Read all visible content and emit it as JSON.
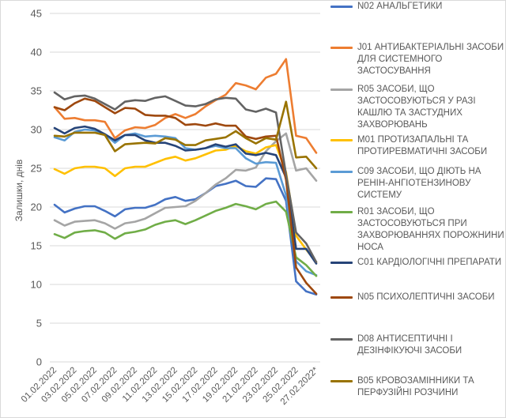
{
  "chart_data": {
    "type": "line",
    "title": "",
    "xlabel": "",
    "ylabel": "Залишки, днів",
    "ylim": [
      0,
      45
    ],
    "yticks": [
      0,
      5,
      10,
      15,
      20,
      25,
      30,
      35,
      40,
      45
    ],
    "grid": "horizontal",
    "legend_position": "right",
    "categories": [
      "01.02.2022",
      "02.02.2022",
      "03.02.2022",
      "04.02.2022",
      "05.02.2022",
      "06.02.2022",
      "07.02.2022",
      "08.02.2022",
      "09.02.2022",
      "10.02.2022",
      "11.02.2022",
      "12.02.2022",
      "13.02.2022",
      "14.02.2022",
      "15.02.2022",
      "16.02.2022",
      "17.02.2022",
      "18.02.2022",
      "19.02.2022",
      "20.02.2022",
      "21.02.2022",
      "22.02.2022",
      "23.02.2022",
      "24.02.2022",
      "25.02.2022",
      "26.02.2022",
      "27.02.2022*"
    ],
    "x_tick_labels": [
      "01.02.2022",
      "03.02.2022",
      "05.02.2022",
      "07.02.2022",
      "09.02.2022",
      "11.02.2022",
      "13.02.2022",
      "15.02.2022",
      "17.02.2022",
      "19.02.2022",
      "21.02.2022",
      "23.02.2022",
      "25.02.2022",
      "27.02.2022*"
    ],
    "series": [
      {
        "name": "N02 АНАЛЬГЕТИКИ",
        "color": "#4472C4",
        "values": [
          20.3,
          19.3,
          19.8,
          20.1,
          20.1,
          19.5,
          18.8,
          19.7,
          19.9,
          19.9,
          20.3,
          21.0,
          21.3,
          20.8,
          21.0,
          21.8,
          22.7,
          23.0,
          23.4,
          22.7,
          22.6,
          23.7,
          23.6,
          20.8,
          10.4,
          9.1,
          8.7
        ]
      },
      {
        "name": "J01 АНТИБАКТЕРІАЛЬНІ ЗАСОБИ ДЛЯ СИСТЕМНОГО ЗАСТОСУВАННЯ",
        "color": "#ED7D31",
        "values": [
          32.9,
          31.4,
          31.5,
          31.2,
          31.2,
          31.0,
          28.9,
          29.9,
          30.3,
          30.2,
          30.6,
          31.5,
          32.0,
          31.5,
          32.0,
          33.0,
          33.8,
          34.5,
          36.0,
          35.7,
          35.2,
          36.7,
          37.2,
          39.1,
          29.2,
          28.9,
          27.0
        ]
      },
      {
        "name": "R05 ЗАСОБИ, ЩО ЗАСТОСОВУЮТЬСЯ У РАЗІ КАШЛЮ ТА ЗАСТУДНИХ ЗАХВОРЮВАНЬ",
        "color": "#A5A5A5",
        "values": [
          18.3,
          17.6,
          18.1,
          18.2,
          18.3,
          17.9,
          17.2,
          17.9,
          18.1,
          18.5,
          19.2,
          19.9,
          20.0,
          20.1,
          20.8,
          21.8,
          22.9,
          23.7,
          24.8,
          24.7,
          25.1,
          27.2,
          28.5,
          29.5,
          24.7,
          25.0,
          23.4
        ]
      },
      {
        "name": "M01 ПРОТИЗАПАЛЬНІ ТА ПРОТИРЕВМАТИЧНІ ЗАСОБИ",
        "color": "#FFC000",
        "values": [
          24.9,
          24.3,
          25.0,
          25.2,
          25.2,
          25.0,
          24.0,
          25.0,
          25.2,
          25.2,
          25.7,
          26.2,
          26.5,
          26.0,
          26.3,
          26.8,
          27.3,
          27.4,
          27.9,
          27.2,
          26.9,
          27.7,
          28.0,
          24.5,
          16.3,
          14.5,
          12.9
        ]
      },
      {
        "name": "C09 ЗАСОБИ, ЩО ДІЮТЬ НА РЕНІН-АНГІОТЕНЗИНОВУ СИСТЕМУ",
        "color": "#5B9BD5",
        "values": [
          29.0,
          28.6,
          29.7,
          30.0,
          29.9,
          29.4,
          28.3,
          29.3,
          29.5,
          29.1,
          29.2,
          29.1,
          28.9,
          27.6,
          27.4,
          27.6,
          27.9,
          27.6,
          27.6,
          26.3,
          25.6,
          25.8,
          25.7,
          21.5,
          13.0,
          11.7,
          11.2
        ]
      },
      {
        "name": "R01 ЗАСОБИ, ЩО ЗАСТОСОВУЮТЬСЯ ПРИ ЗАХВОРЮВАННЯХ ПОРОЖНИНИ НОСА",
        "color": "#70AD47",
        "values": [
          16.5,
          16.0,
          16.7,
          16.9,
          17.0,
          16.7,
          15.9,
          16.6,
          16.8,
          17.1,
          17.7,
          18.1,
          18.3,
          17.8,
          18.3,
          18.9,
          19.5,
          19.9,
          20.4,
          20.1,
          19.7,
          20.4,
          20.7,
          19.4,
          13.5,
          12.5,
          11.1
        ]
      },
      {
        "name": "C01 КАРДІОЛОГІЧНІ ПРЕПАРАТИ",
        "color": "#264478",
        "values": [
          30.2,
          29.5,
          30.2,
          30.4,
          30.1,
          29.4,
          28.6,
          29.3,
          29.3,
          28.6,
          28.3,
          28.3,
          27.9,
          27.3,
          27.4,
          27.6,
          28.1,
          27.8,
          28.1,
          26.9,
          26.7,
          27.0,
          26.7,
          23.8,
          14.6,
          14.6,
          12.7
        ]
      },
      {
        "name": "N05 ПСИХОЛЕПТИЧНІ ЗАСОБИ",
        "color": "#9E480E",
        "values": [
          32.9,
          32.5,
          33.4,
          34.0,
          33.7,
          32.9,
          32.1,
          32.8,
          32.7,
          31.9,
          31.8,
          31.8,
          31.5,
          30.6,
          30.7,
          30.5,
          30.8,
          30.5,
          30.5,
          29.1,
          28.8,
          29.1,
          29.2,
          23.5,
          12.2,
          10.2,
          8.8
        ]
      },
      {
        "name": "D08 АНТИСЕПТИЧНІ І ДЕЗІНФІКУЮЧІ ЗАСОБИ",
        "color": "#636363",
        "values": [
          34.8,
          33.9,
          34.3,
          34.4,
          34.0,
          33.3,
          32.6,
          33.6,
          33.8,
          33.7,
          34.1,
          34.3,
          33.7,
          33.1,
          33.0,
          33.3,
          33.9,
          34.1,
          34.0,
          32.6,
          32.3,
          32.7,
          32.2,
          24.2,
          16.7,
          15.3,
          12.9
        ]
      },
      {
        "name": "B05 КРОВОЗАМІННИКИ ТА ПЕРФУЗІЙНІ РОЗЧИНИ",
        "color": "#997300",
        "values": [
          29.2,
          29.1,
          29.6,
          29.6,
          29.6,
          29.3,
          27.2,
          28.1,
          28.2,
          28.3,
          28.2,
          28.9,
          28.7,
          28.0,
          28.0,
          28.6,
          28.8,
          29.0,
          29.8,
          28.9,
          28.2,
          28.9,
          28.7,
          33.6,
          26.4,
          26.5,
          25.0
        ]
      }
    ]
  }
}
